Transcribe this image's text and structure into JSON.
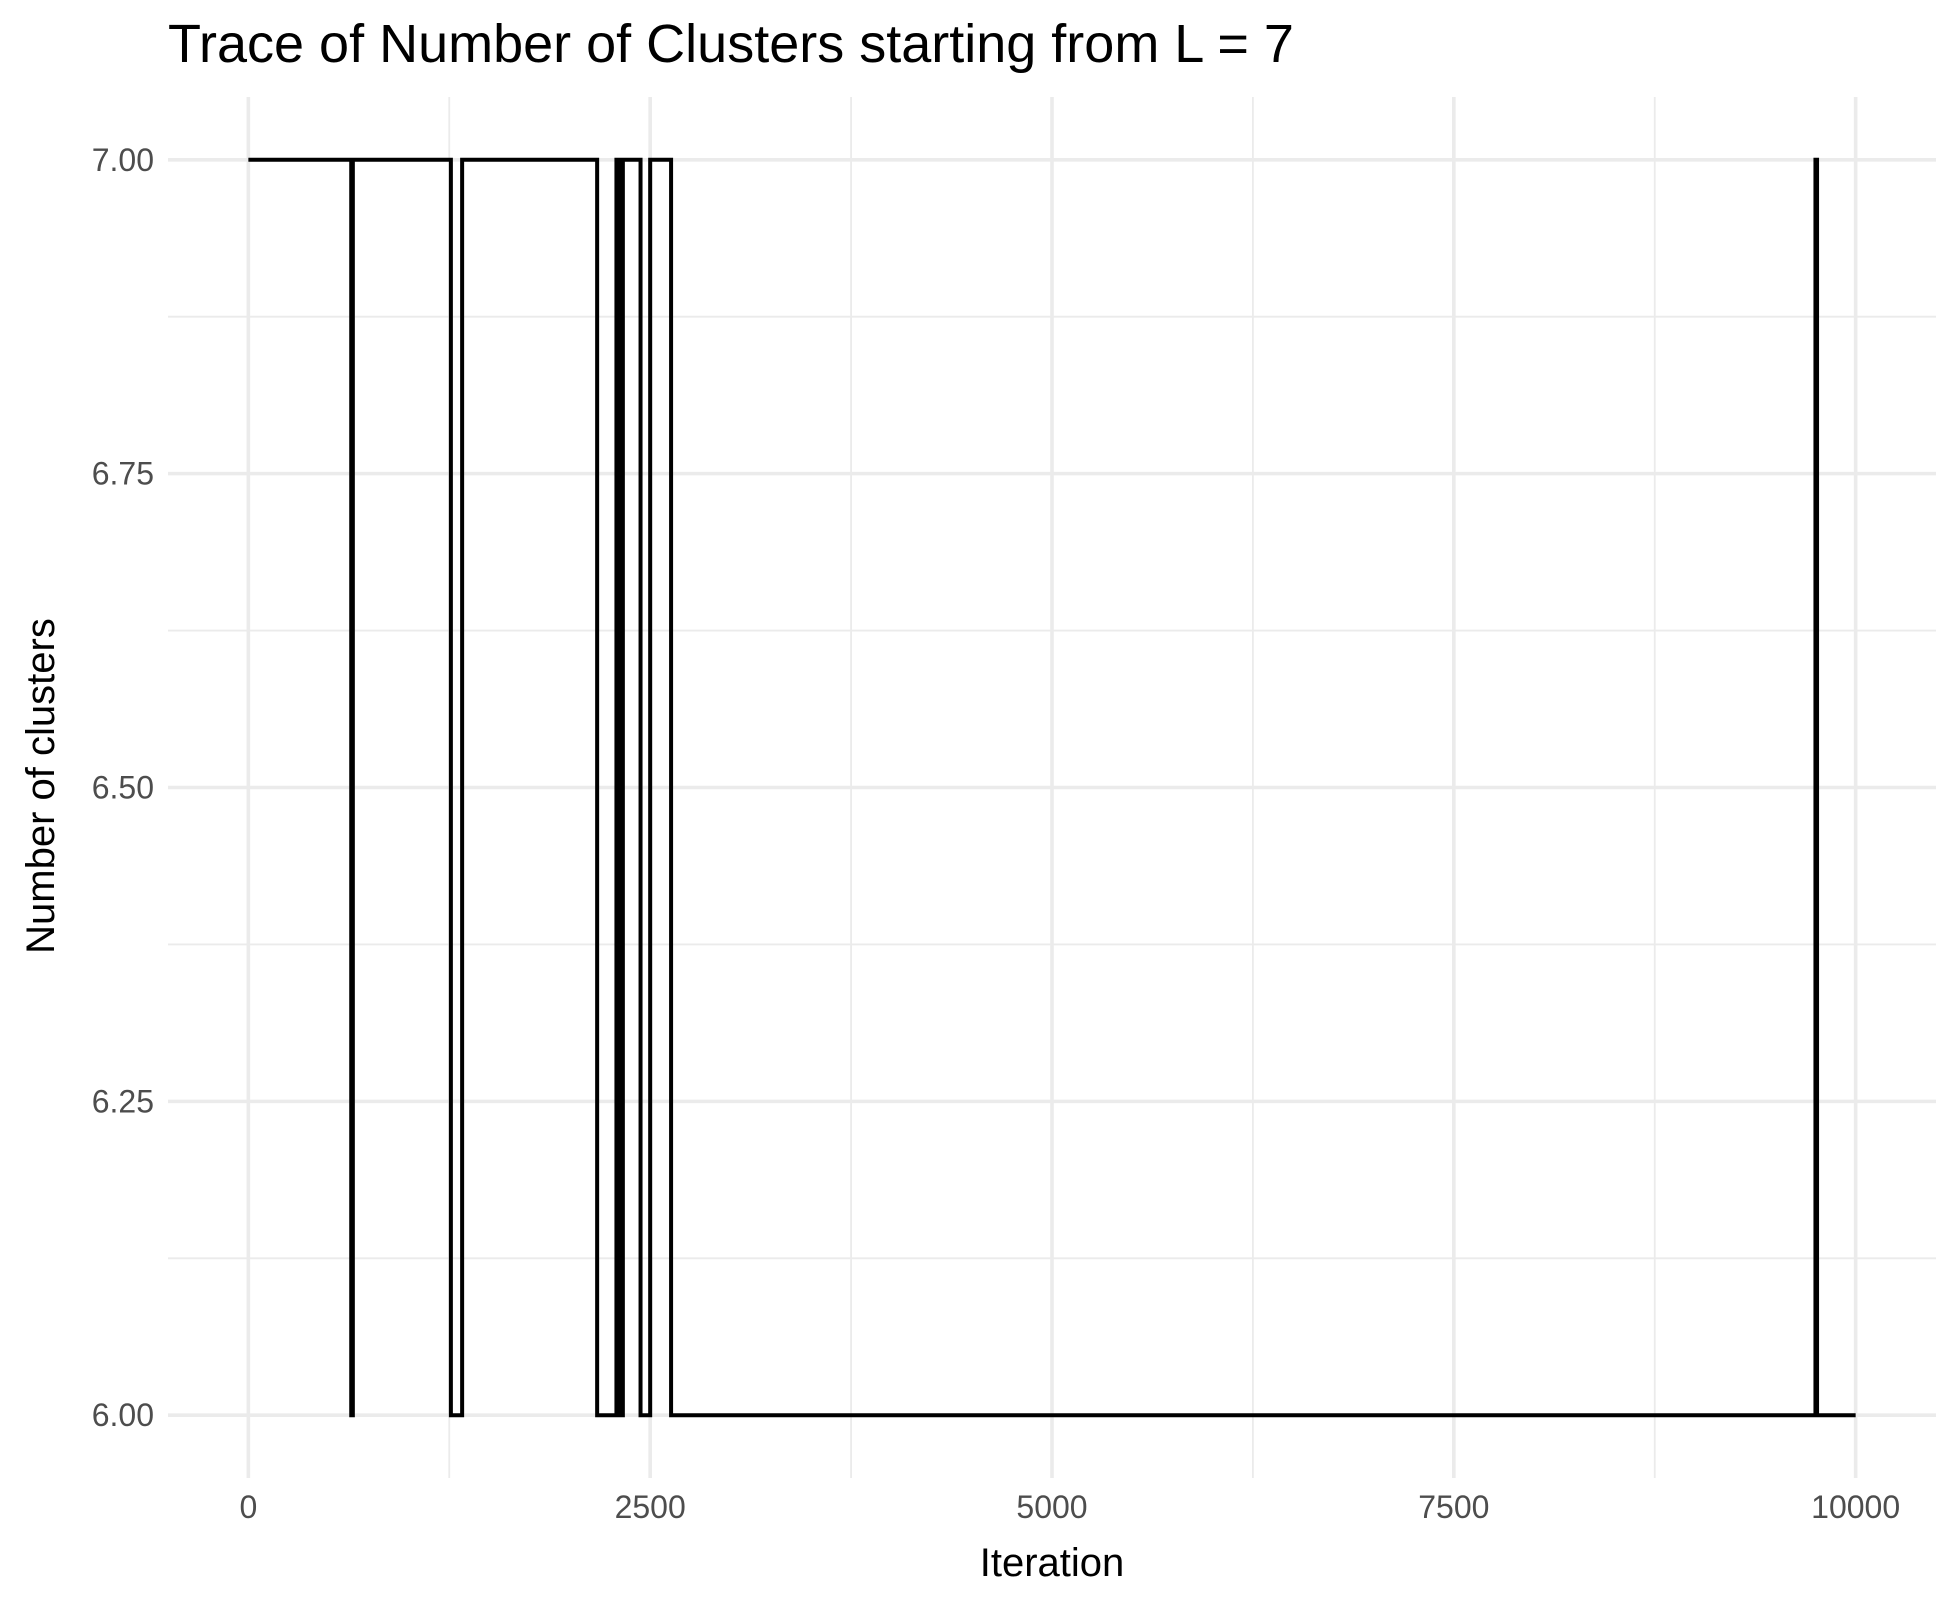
{
  "chart_data": {
    "type": "line",
    "line_style": "step",
    "title": "Trace of Number of Clusters starting from L = 7",
    "xlabel": "Iteration",
    "ylabel": "Number of clusters",
    "xlim": [
      -500,
      10500
    ],
    "ylim": [
      5.95,
      7.05
    ],
    "x_major_ticks": [
      0,
      2500,
      5000,
      7500,
      10000
    ],
    "x_minor_ticks": [
      1250,
      3750,
      6250,
      8750
    ],
    "y_major_ticks": [
      6.0,
      6.25,
      6.5,
      6.75,
      7.0
    ],
    "y_minor_ticks": [
      6.125,
      6.375,
      6.625,
      6.875
    ],
    "x_tick_labels": [
      "0",
      "2500",
      "5000",
      "7500",
      "10000"
    ],
    "y_tick_labels": [
      "6.00",
      "6.25",
      "6.50",
      "6.75",
      "7.00"
    ],
    "grid": true,
    "legend": "none",
    "series": [
      {
        "color": "#000000",
        "x": [
          0,
          640,
          640,
          650,
          650,
          1260,
          1260,
          1330,
          1330,
          2170,
          2170,
          2290,
          2290,
          2310,
          2310,
          2330,
          2330,
          2440,
          2440,
          2500,
          2500,
          2630,
          2630,
          9750,
          9750,
          9760,
          9760,
          10000
        ],
        "y": [
          7,
          7,
          6,
          6,
          7,
          7,
          6,
          6,
          7,
          7,
          6,
          6,
          7,
          7,
          6,
          6,
          7,
          7,
          6,
          6,
          7,
          7,
          6,
          6,
          7,
          7,
          6,
          6
        ]
      }
    ]
  }
}
